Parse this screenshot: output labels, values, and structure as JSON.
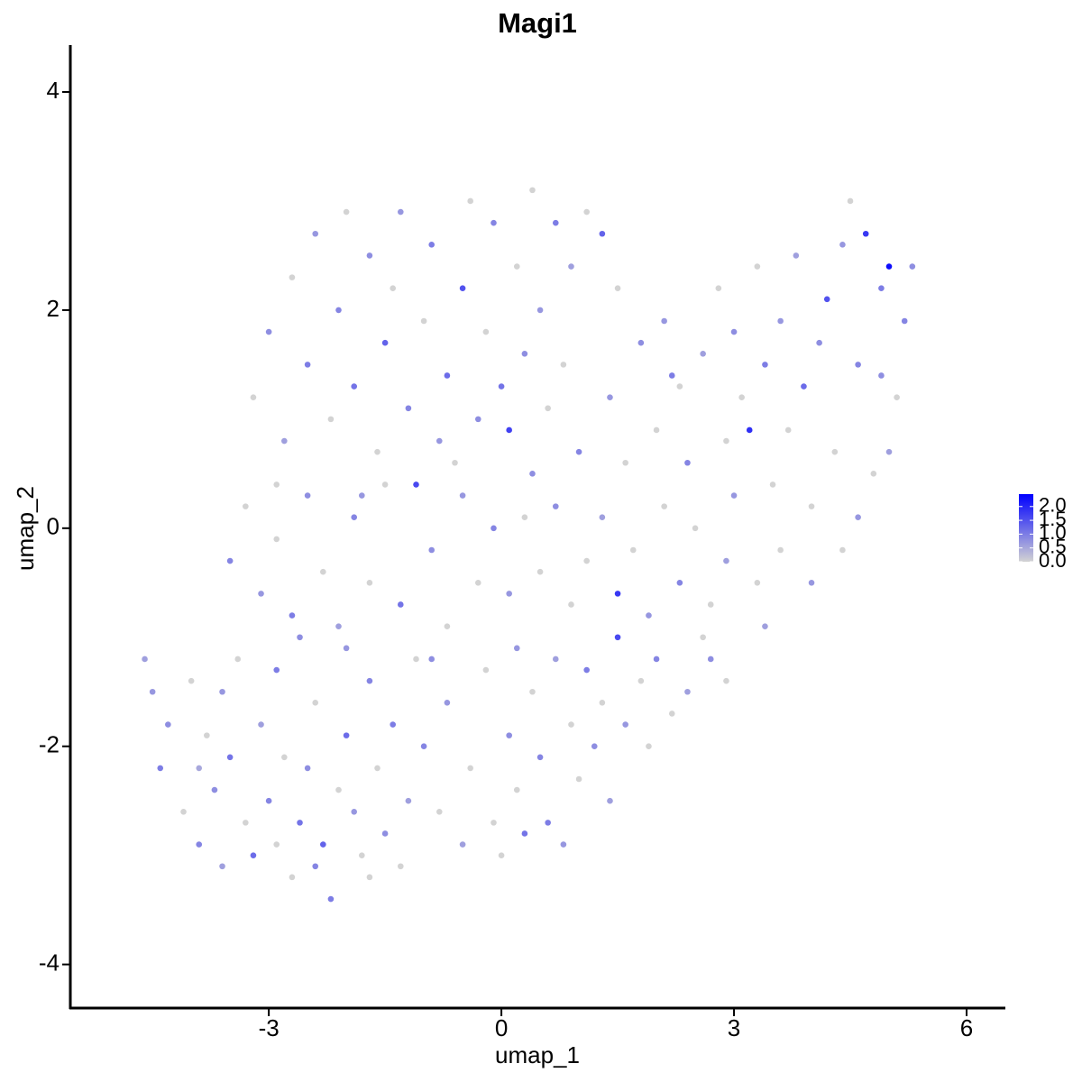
{
  "chart_data": {
    "type": "scatter",
    "title": "Magi1",
    "x_label": "umap_1",
    "y_label": "umap_2",
    "x": [
      -4.6,
      -4.5,
      -4.3,
      -4.4,
      -4.1,
      -3.9,
      -3.7,
      -3.8,
      -3.6,
      -3.5,
      -3.3,
      -3.2,
      -3.0,
      -3.1,
      -2.9,
      -2.8,
      -2.7,
      -2.6,
      -2.5,
      -2.4,
      -2.3,
      -2.2,
      -2.1,
      -2.0,
      -1.9,
      -1.8,
      -1.7,
      -1.6,
      -1.5,
      -1.4,
      -1.3,
      -1.2,
      -1.1,
      -1.0,
      -3.4,
      -3.9,
      -4.0,
      -2.6,
      -2.0,
      -3.6,
      -2.9,
      -2.4,
      -1.7,
      -0.8,
      -0.7,
      -0.5,
      -0.4,
      -0.2,
      -0.1,
      0.0,
      0.1,
      0.2,
      0.3,
      0.4,
      0.5,
      0.6,
      0.7,
      0.8,
      0.9,
      1.0,
      1.1,
      1.2,
      1.3,
      1.5,
      1.6,
      1.8,
      1.9,
      2.0,
      2.2,
      2.4,
      2.6,
      2.7,
      2.9,
      1.4,
      0.2,
      -0.9,
      -3.5,
      -3.3,
      -3.1,
      -2.9,
      -2.7,
      -2.5,
      -2.3,
      -2.1,
      -1.9,
      -1.7,
      -1.5,
      -1.3,
      -1.1,
      -0.9,
      -0.7,
      -0.5,
      -0.3,
      -0.1,
      0.1,
      0.3,
      0.5,
      0.7,
      0.9,
      1.1,
      1.3,
      1.5,
      1.7,
      1.9,
      2.1,
      2.3,
      2.5,
      2.7,
      2.9,
      -3.2,
      -3.0,
      -2.8,
      -2.7,
      -2.5,
      -2.4,
      -2.2,
      -2.1,
      -2.0,
      -1.9,
      -1.7,
      -1.6,
      -1.5,
      -1.4,
      -1.3,
      -1.2,
      -1.0,
      -0.9,
      -0.8,
      -0.7,
      -0.5,
      -0.4,
      -0.3,
      -0.2,
      -0.1,
      0.0,
      0.1,
      0.2,
      0.3,
      0.4,
      0.5,
      0.6,
      0.7,
      0.8,
      0.9,
      1.0,
      1.1,
      1.3,
      -2.9,
      -1.8,
      -0.6,
      0.4,
      1.4,
      1.6,
      1.8,
      2.0,
      2.1,
      2.3,
      2.4,
      2.6,
      2.8,
      2.9,
      3.0,
      3.1,
      3.2,
      3.3,
      3.4,
      3.5,
      3.6,
      3.7,
      3.8,
      3.9,
      4.0,
      4.1,
      4.2,
      4.3,
      4.4,
      4.5,
      4.6,
      4.7,
      4.8,
      4.9,
      5.0,
      5.1,
      5.2,
      5.3,
      5.0,
      4.4,
      4.0,
      3.6,
      3.4,
      3.3,
      4.6,
      3.0,
      4.9,
      2.2,
      1.5
    ],
    "y": [
      -1.2,
      -1.5,
      -1.8,
      -2.2,
      -2.6,
      -2.9,
      -2.4,
      -1.9,
      -1.5,
      -2.1,
      -2.7,
      -3.0,
      -2.5,
      -1.8,
      -1.3,
      -2.1,
      -3.2,
      -2.7,
      -2.2,
      -1.6,
      -2.9,
      -3.4,
      -2.4,
      -1.9,
      -2.6,
      -3.0,
      -1.4,
      -2.2,
      -2.8,
      -1.8,
      -3.1,
      -2.5,
      -1.2,
      -2.0,
      -1.2,
      -2.2,
      -1.4,
      -1.0,
      -1.1,
      -3.1,
      -2.9,
      -3.1,
      -3.2,
      -2.6,
      -1.6,
      -2.9,
      -2.2,
      -1.3,
      -2.7,
      -3.0,
      -1.9,
      -2.4,
      -2.8,
      -1.5,
      -2.1,
      -2.7,
      -1.2,
      -2.9,
      -1.8,
      -2.3,
      -1.3,
      -2.0,
      -1.6,
      -1.0,
      -1.8,
      -1.4,
      -2.0,
      -1.2,
      -1.7,
      -1.5,
      -1.0,
      -1.2,
      -1.4,
      -2.5,
      -1.1,
      -1.2,
      -0.3,
      0.2,
      -0.6,
      -0.1,
      -0.8,
      0.3,
      -0.4,
      -0.9,
      0.1,
      -0.5,
      0.4,
      -0.7,
      0.4,
      -0.2,
      -0.9,
      0.3,
      -0.5,
      0.0,
      -0.6,
      0.1,
      -0.4,
      0.2,
      -0.7,
      -0.3,
      0.1,
      -0.6,
      -0.2,
      -0.8,
      0.2,
      -0.5,
      0.0,
      -0.7,
      -0.3,
      1.2,
      1.8,
      0.8,
      2.3,
      1.5,
      2.7,
      1.0,
      2.0,
      2.9,
      1.3,
      2.5,
      0.7,
      1.7,
      2.2,
      2.9,
      1.1,
      1.9,
      2.6,
      0.8,
      1.4,
      2.2,
      3.0,
      1.0,
      1.8,
      2.8,
      1.3,
      0.9,
      2.4,
      1.6,
      3.1,
      2.0,
      1.1,
      2.8,
      1.5,
      2.4,
      0.7,
      2.9,
      2.7,
      0.4,
      0.3,
      0.6,
      0.5,
      1.2,
      0.6,
      1.7,
      0.9,
      1.9,
      1.3,
      0.6,
      1.6,
      2.2,
      0.8,
      1.8,
      1.2,
      0.9,
      2.4,
      1.5,
      0.4,
      1.9,
      0.9,
      2.5,
      1.3,
      0.2,
      1.7,
      2.1,
      0.7,
      2.6,
      3.0,
      1.5,
      2.7,
      0.5,
      2.2,
      2.4,
      1.2,
      1.9,
      2.4,
      0.7,
      -0.2,
      -0.5,
      -0.2,
      -0.9,
      -0.5,
      0.1,
      0.3,
      1.4,
      1.4,
      2.2
    ],
    "values": [
      0.6,
      0.7,
      0.8,
      1.0,
      0,
      0.9,
      0.8,
      0,
      0.7,
      1.1,
      0,
      1.2,
      0.9,
      0.6,
      1.0,
      0,
      0,
      1.1,
      0.8,
      0,
      1.3,
      1.0,
      0,
      1.2,
      0.7,
      0,
      0.9,
      0,
      0.8,
      1.0,
      0,
      0.6,
      0,
      0.9,
      0,
      0.5,
      0,
      0.8,
      0.7,
      0.6,
      0,
      0.9,
      0,
      0,
      0.7,
      0.6,
      0,
      0,
      0,
      0,
      0.8,
      0,
      1.1,
      0,
      0.9,
      1.0,
      0.6,
      0.7,
      0,
      0,
      1.0,
      0.8,
      0,
      1.6,
      0.7,
      0,
      0,
      0.9,
      0,
      0.6,
      0,
      0.8,
      0,
      0.6,
      0.7,
      0.8,
      0.9,
      0,
      0.7,
      0,
      1.0,
      0.8,
      0,
      0.6,
      0.9,
      0,
      0,
      1.1,
      1.6,
      0.8,
      0,
      0.7,
      0,
      0.9,
      0.7,
      0,
      0,
      0.8,
      0,
      0,
      0.6,
      1.8,
      0,
      0.7,
      0,
      0.9,
      0,
      0,
      0.6,
      0,
      0.8,
      0.6,
      0,
      1.0,
      0.7,
      0,
      0.9,
      0,
      1.1,
      0.8,
      0,
      1.3,
      0,
      0.7,
      0.9,
      0,
      1.0,
      0.7,
      1.2,
      1.5,
      0,
      0.8,
      0,
      0.9,
      1.1,
      1.7,
      0,
      0.8,
      0,
      0.7,
      0,
      1.0,
      0,
      0.6,
      0.9,
      0,
      1.3,
      0,
      0.7,
      0,
      0.8,
      0.7,
      0,
      0.8,
      0,
      0.7,
      0,
      0.9,
      0.6,
      0,
      0,
      0.8,
      0,
      1.9,
      0,
      1.0,
      0,
      0.7,
      0,
      0.6,
      1.2,
      0,
      0.8,
      1.5,
      0,
      0.7,
      0,
      0.9,
      1.8,
      0,
      1.0,
      2.3,
      0,
      0.9,
      0.8,
      0.6,
      0,
      0.7,
      0,
      0.6,
      0,
      0.7,
      0.7,
      0.8,
      1.0,
      0
    ],
    "low_color": "#d3d3d3",
    "high_color": "#0000ff",
    "xlim": [
      -5.56,
      6.5
    ],
    "xticks": [
      -3,
      0,
      3,
      6
    ],
    "ylim": [
      -4.4,
      4.43
    ],
    "yticks": [
      -4,
      -2,
      0,
      2,
      4
    ],
    "clim": [
      0,
      2.45
    ],
    "cticks": [
      {
        "value": 0,
        "label": "0.0"
      },
      {
        "value": 0.5,
        "label": "0.5"
      },
      {
        "value": 1,
        "label": "1.0"
      },
      {
        "value": 1.5,
        "label": "1.5"
      },
      {
        "value": 2,
        "label": "2.0"
      }
    ]
  }
}
